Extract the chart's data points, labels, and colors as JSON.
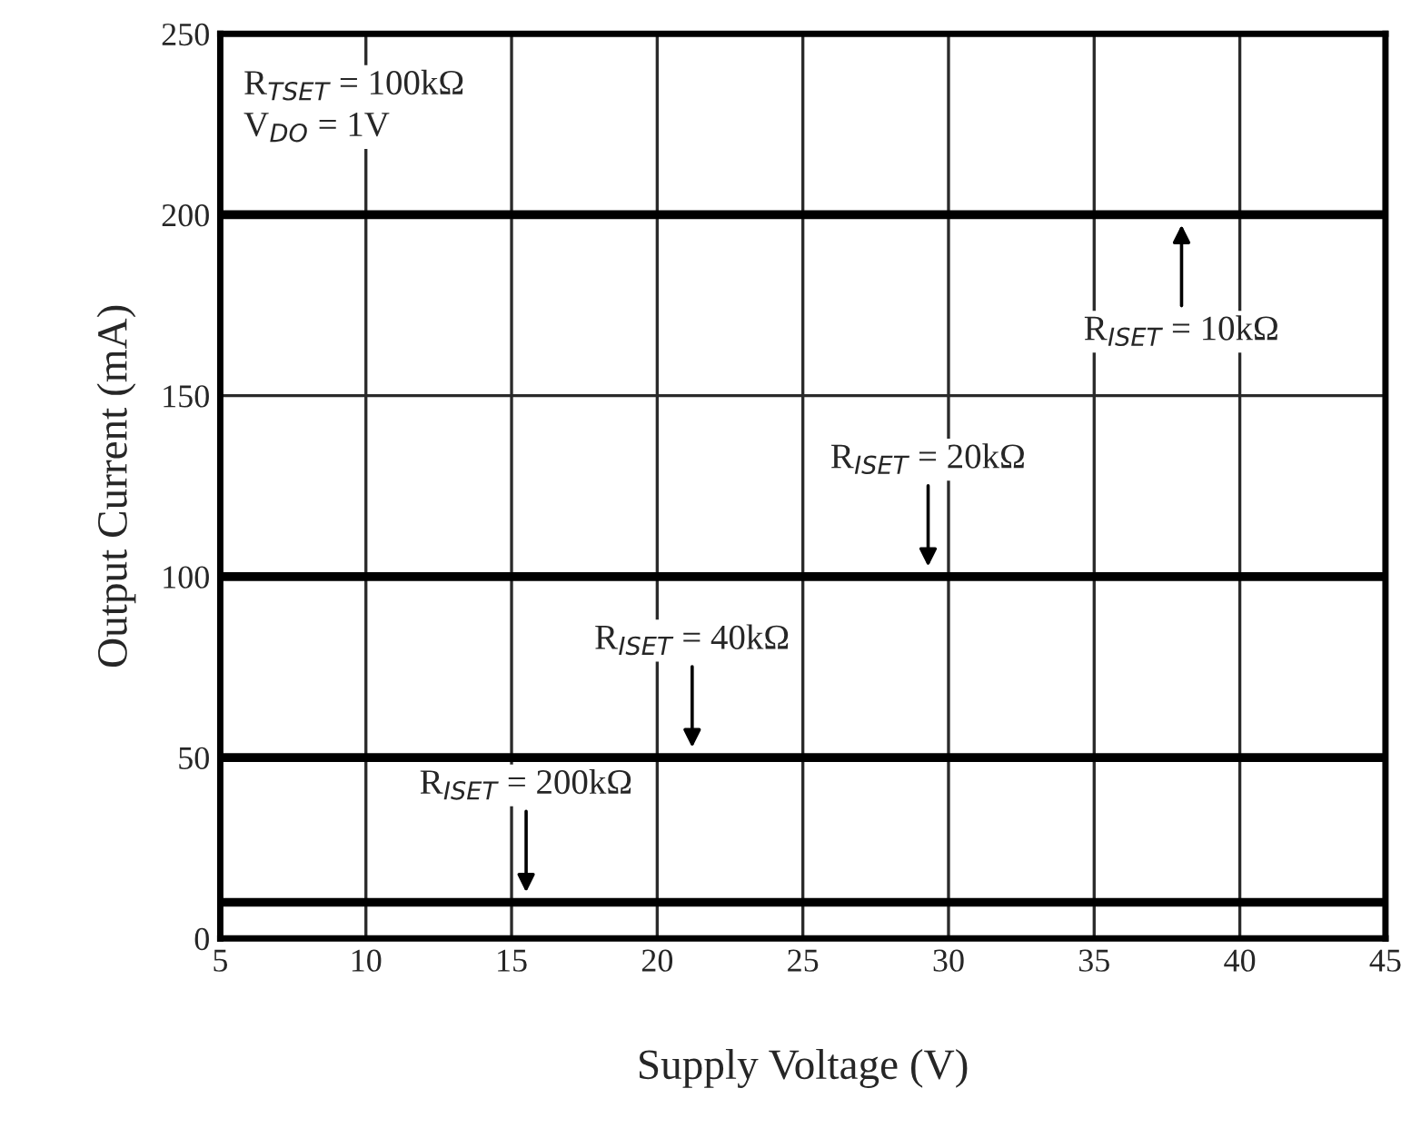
{
  "chart_data": {
    "type": "line",
    "xlabel": "Supply Voltage (V)",
    "ylabel": "Output Current (mA)",
    "x": [
      5,
      45
    ],
    "series": [
      {
        "color": "#000000",
        "values": [
          200,
          200
        ]
      },
      {
        "color": "#000000",
        "values": [
          100,
          100
        ]
      },
      {
        "color": "#000000",
        "values": [
          50,
          50
        ]
      },
      {
        "color": "#000000",
        "values": [
          10,
          10
        ]
      }
    ],
    "xlim": [
      5,
      45
    ],
    "xticks": [
      5,
      10,
      15,
      20,
      25,
      30,
      35,
      40,
      45
    ],
    "ylim": [
      0,
      250
    ],
    "yticks": [
      0,
      50,
      100,
      150,
      200,
      250
    ],
    "grid": true,
    "legend": false,
    "marker": "none",
    "line_style": "solid",
    "annotations": [
      "R$_{TSET}$ = 100kΩ\nV$_{DO}$ = 1V",
      {
        "text": "R$_{ISET}$ = 10kΩ",
        "x": 38,
        "y": 200
      },
      {
        "text": "R$_{ISET}$ = 20kΩ",
        "x": 29.3,
        "y": 100
      },
      {
        "text": "R$_{ISET}$ = 40kΩ",
        "x": 21.2,
        "y": 50
      },
      {
        "text": "R$_{ISET}$ = 200kΩ",
        "x": 15.5,
        "y": 10
      }
    ]
  }
}
